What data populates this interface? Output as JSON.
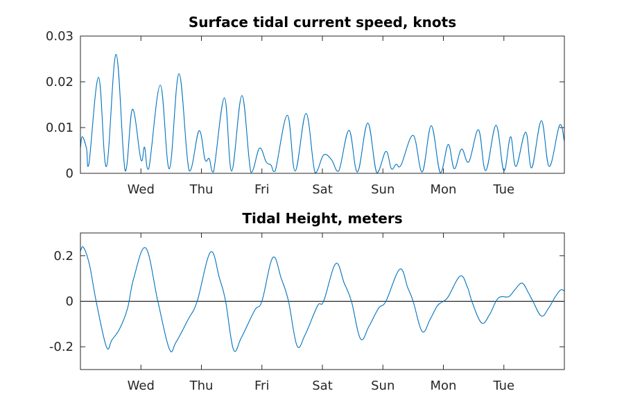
{
  "figure": {
    "background": "#ffffff"
  },
  "chart_data": [
    {
      "type": "line",
      "title": "Surface tidal current speed, knots",
      "xlabel": "",
      "ylabel": "",
      "x_unit": "days",
      "x_range": [
        0,
        8
      ],
      "x_ticks": [
        {
          "x": 1,
          "label": "Wed"
        },
        {
          "x": 2,
          "label": "Thu"
        },
        {
          "x": 3,
          "label": "Fri"
        },
        {
          "x": 4,
          "label": "Sat"
        },
        {
          "x": 5,
          "label": "Sun"
        },
        {
          "x": 6,
          "label": "Mon"
        },
        {
          "x": 7,
          "label": "Tue"
        }
      ],
      "ylim": [
        0,
        0.03
      ],
      "y_ticks": [
        {
          "y": 0,
          "label": "0"
        },
        {
          "y": 0.01,
          "label": "0.01"
        },
        {
          "y": 0.02,
          "label": "0.02"
        },
        {
          "y": 0.03,
          "label": "0.03"
        }
      ],
      "grid": false,
      "legend": "none",
      "zero_line": false,
      "series": [
        {
          "color": "#0072bd",
          "points": [
            [
              0.0,
              0.0055
            ],
            [
              0.03,
              0.008
            ],
            [
              0.1,
              0.0055
            ],
            [
              0.14,
              0.002
            ],
            [
              0.3,
              0.021
            ],
            [
              0.43,
              0.0015
            ],
            [
              0.59,
              0.026
            ],
            [
              0.74,
              0.0005
            ],
            [
              0.86,
              0.014
            ],
            [
              1.0,
              0.003
            ],
            [
              1.06,
              0.0057
            ],
            [
              1.13,
              0.001
            ],
            [
              1.32,
              0.0193
            ],
            [
              1.47,
              0.001
            ],
            [
              1.63,
              0.0218
            ],
            [
              1.8,
              0.0005
            ],
            [
              1.96,
              0.0093
            ],
            [
              2.06,
              0.003
            ],
            [
              2.13,
              0.0032
            ],
            [
              2.2,
              0.0003
            ],
            [
              2.38,
              0.0165
            ],
            [
              2.5,
              0.0005
            ],
            [
              2.67,
              0.017
            ],
            [
              2.82,
              0.0002
            ],
            [
              2.96,
              0.0055
            ],
            [
              3.07,
              0.0025
            ],
            [
              3.15,
              0.0018
            ],
            [
              3.22,
              0.0005
            ],
            [
              3.42,
              0.0127
            ],
            [
              3.55,
              0.0005
            ],
            [
              3.73,
              0.0131
            ],
            [
              3.88,
              0.0001
            ],
            [
              4.02,
              0.004
            ],
            [
              4.15,
              0.003
            ],
            [
              4.27,
              0.0005
            ],
            [
              4.44,
              0.0094
            ],
            [
              4.58,
              0.0003
            ],
            [
              4.75,
              0.011
            ],
            [
              4.9,
              0.0001
            ],
            [
              5.05,
              0.0048
            ],
            [
              5.14,
              0.001
            ],
            [
              5.22,
              0.002
            ],
            [
              5.3,
              0.0018
            ],
            [
              5.5,
              0.0083
            ],
            [
              5.65,
              0.0003
            ],
            [
              5.8,
              0.0104
            ],
            [
              5.95,
              0.0001
            ],
            [
              6.08,
              0.0063
            ],
            [
              6.18,
              0.001
            ],
            [
              6.3,
              0.0053
            ],
            [
              6.42,
              0.0025
            ],
            [
              6.58,
              0.0095
            ],
            [
              6.7,
              0.0006
            ],
            [
              6.87,
              0.0105
            ],
            [
              7.0,
              0.0006
            ],
            [
              7.11,
              0.008
            ],
            [
              7.2,
              0.0015
            ],
            [
              7.36,
              0.009
            ],
            [
              7.46,
              0.0012
            ],
            [
              7.62,
              0.0115
            ],
            [
              7.75,
              0.0015
            ],
            [
              7.92,
              0.0105
            ],
            [
              8.0,
              0.007
            ]
          ]
        }
      ]
    },
    {
      "type": "line",
      "title": "Tidal Height, meters",
      "xlabel": "",
      "ylabel": "",
      "x_unit": "days",
      "x_range": [
        0,
        8
      ],
      "x_ticks": [
        {
          "x": 1,
          "label": "Wed"
        },
        {
          "x": 2,
          "label": "Thu"
        },
        {
          "x": 3,
          "label": "Fri"
        },
        {
          "x": 4,
          "label": "Sat"
        },
        {
          "x": 5,
          "label": "Sun"
        },
        {
          "x": 6,
          "label": "Mon"
        },
        {
          "x": 7,
          "label": "Tue"
        }
      ],
      "ylim": [
        -0.3,
        0.3
      ],
      "y_ticks": [
        {
          "y": -0.2,
          "label": "-0.2"
        },
        {
          "y": 0,
          "label": "0"
        },
        {
          "y": 0.2,
          "label": "0.2"
        }
      ],
      "grid": false,
      "legend": "none",
      "zero_line": true,
      "zero_line_color": "#000000",
      "series": [
        {
          "color": "#0072bd",
          "points": [
            [
              0.0,
              0.22
            ],
            [
              0.05,
              0.237
            ],
            [
              0.15,
              0.16
            ],
            [
              0.26,
              0.0
            ],
            [
              0.43,
              -0.2
            ],
            [
              0.52,
              -0.17
            ],
            [
              0.65,
              -0.12
            ],
            [
              0.78,
              -0.03
            ],
            [
              0.88,
              0.1
            ],
            [
              1.08,
              0.234
            ],
            [
              1.28,
              0.0
            ],
            [
              1.47,
              -0.21
            ],
            [
              1.58,
              -0.18
            ],
            [
              1.78,
              -0.08
            ],
            [
              1.93,
              0.0
            ],
            [
              2.15,
              0.216
            ],
            [
              2.3,
              0.1
            ],
            [
              2.4,
              0.0
            ],
            [
              2.53,
              -0.212
            ],
            [
              2.66,
              -0.16
            ],
            [
              2.88,
              -0.04
            ],
            [
              3.0,
              0.0
            ],
            [
              3.18,
              0.192
            ],
            [
              3.32,
              0.1
            ],
            [
              3.44,
              0.0
            ],
            [
              3.58,
              -0.195
            ],
            [
              3.71,
              -0.15
            ],
            [
              3.92,
              -0.02
            ],
            [
              4.02,
              0.0
            ],
            [
              4.22,
              0.165
            ],
            [
              4.36,
              0.08
            ],
            [
              4.48,
              0.0
            ],
            [
              4.63,
              -0.165
            ],
            [
              4.77,
              -0.11
            ],
            [
              4.93,
              -0.03
            ],
            [
              5.05,
              0.0
            ],
            [
              5.28,
              0.141
            ],
            [
              5.41,
              0.06
            ],
            [
              5.5,
              0.0
            ],
            [
              5.65,
              -0.133
            ],
            [
              5.78,
              -0.08
            ],
            [
              5.9,
              -0.02
            ],
            [
              6.0,
              0.0
            ],
            [
              6.08,
              0.02
            ],
            [
              6.28,
              0.111
            ],
            [
              6.4,
              0.06
            ],
            [
              6.47,
              0.0
            ],
            [
              6.63,
              -0.095
            ],
            [
              6.76,
              -0.06
            ],
            [
              6.87,
              0.0
            ],
            [
              6.95,
              0.02
            ],
            [
              7.08,
              0.02
            ],
            [
              7.18,
              0.05
            ],
            [
              7.3,
              0.08
            ],
            [
              7.4,
              0.04
            ],
            [
              7.48,
              0.0
            ],
            [
              7.62,
              -0.065
            ],
            [
              7.74,
              -0.03
            ],
            [
              7.85,
              0.02
            ],
            [
              7.94,
              0.05
            ],
            [
              8.0,
              0.045
            ]
          ]
        }
      ]
    }
  ]
}
